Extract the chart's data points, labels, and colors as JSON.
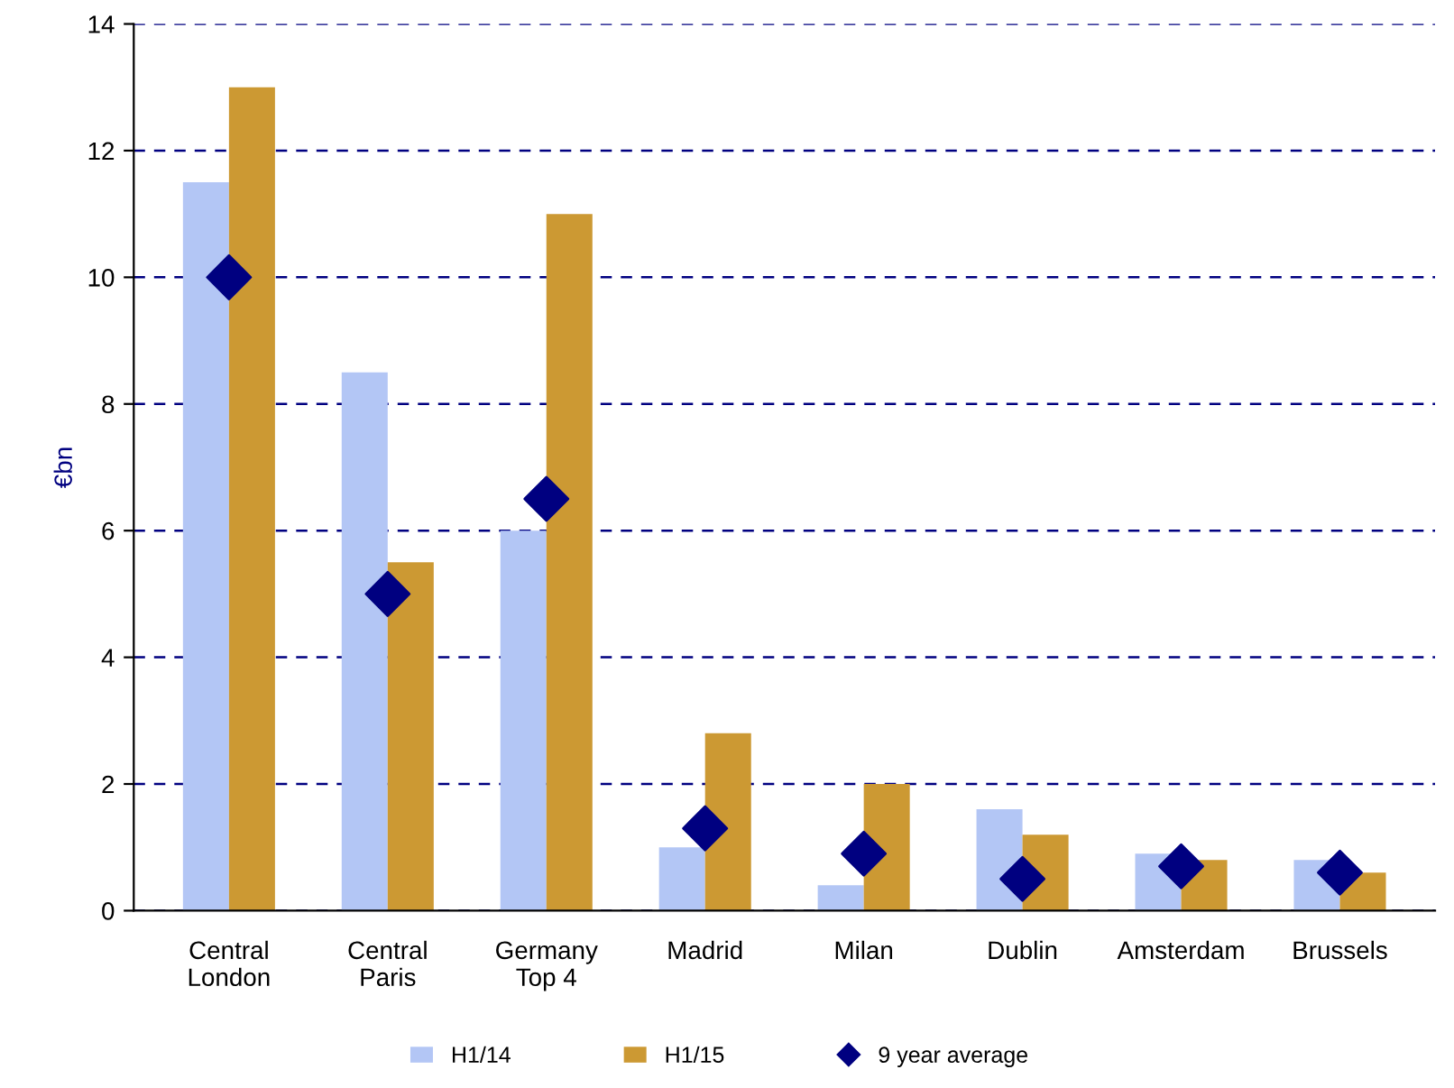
{
  "chart_data": {
    "type": "bar",
    "ylabel": "€bn",
    "categories": [
      "Central\nLondon",
      "Central\nParis",
      "Germany\nTop 4",
      "Madrid",
      "Milan",
      "Dublin",
      "Amsterdam",
      "Brussels"
    ],
    "series": [
      {
        "name": "H1/14",
        "color": "#b3c6f5",
        "values": [
          11.5,
          8.5,
          6.0,
          1.0,
          0.4,
          1.6,
          0.9,
          0.8
        ]
      },
      {
        "name": "H1/15",
        "color": "#cc9933",
        "values": [
          13.0,
          5.5,
          11.0,
          2.8,
          2.0,
          1.2,
          0.8,
          0.6
        ]
      },
      {
        "name": "9 year average",
        "type": "scatter",
        "marker": "diamond",
        "color": "#000080",
        "values": [
          10.0,
          5.0,
          6.5,
          1.3,
          0.9,
          0.5,
          0.7,
          0.6
        ]
      }
    ],
    "ylim": [
      0,
      14
    ],
    "yticks": [
      0,
      2,
      4,
      6,
      8,
      10,
      12,
      14
    ],
    "grid": "y",
    "legend": "bottom"
  }
}
